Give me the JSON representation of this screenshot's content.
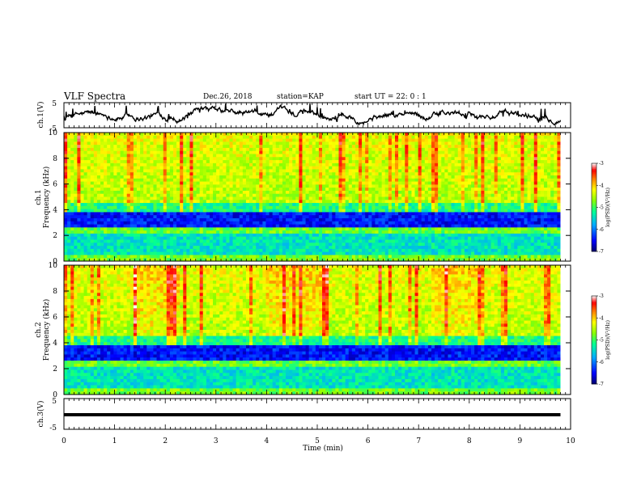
{
  "header": {
    "title": "VLF Spectra",
    "date": "Dec.26, 2018",
    "station": "station=KAP",
    "start": "start  UT =   22: 0  : 1"
  },
  "chart_data": [
    {
      "type": "line",
      "panel": "ch1-waveform",
      "ylabel": "ch.1(V)",
      "ylim": [
        -5,
        5
      ],
      "yticks": [
        "5",
        "-5"
      ],
      "xlim": [
        0,
        10
      ],
      "x_end": 9.8,
      "color": "#000000"
    },
    {
      "type": "heatmap",
      "panel": "ch1-spectrogram",
      "ylabel": "ch.1\nFrequency (kHz)",
      "ylim": [
        0,
        10
      ],
      "yticks": [
        "0",
        "2",
        "4",
        "6",
        "8",
        "10"
      ],
      "xlim": [
        0,
        10
      ],
      "x_end": 9.8,
      "colorbar": {
        "label": "log(PSD)(V²/Hz)",
        "range": [
          -7,
          -3
        ],
        "ticks": [
          "-3",
          "-4",
          "-5",
          "-6",
          "-7"
        ]
      }
    },
    {
      "type": "heatmap",
      "panel": "ch2-spectrogram",
      "ylabel": "ch.2\nFrequency (kHz)",
      "ylim": [
        0,
        10
      ],
      "yticks": [
        "0",
        "2",
        "4",
        "6",
        "8",
        "10"
      ],
      "xlim": [
        0,
        10
      ],
      "x_end": 9.8,
      "colorbar": {
        "label": "log(PSD)(V²/Hz)",
        "range": [
          -7,
          -3
        ],
        "ticks": [
          "-3",
          "-4",
          "-5",
          "-6",
          "-7"
        ]
      }
    },
    {
      "type": "line",
      "panel": "ch3-waveform",
      "ylabel": "ch.3(V)",
      "ylim": [
        -5,
        5
      ],
      "yticks": [
        "5",
        "-5"
      ],
      "xlim": [
        0,
        10
      ],
      "x_end": 9.8,
      "level": 0,
      "color": "#000000"
    }
  ],
  "x_axis": {
    "label": "Time (min)",
    "ticks": [
      "0",
      "1",
      "2",
      "3",
      "4",
      "5",
      "6",
      "7",
      "8",
      "9",
      "10"
    ]
  }
}
